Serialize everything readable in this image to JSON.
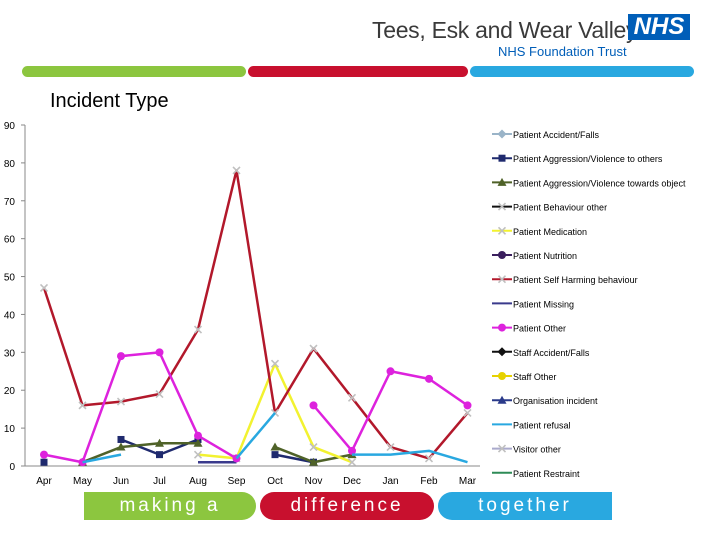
{
  "header": {
    "org_name": "Tees, Esk and Wear Valleys",
    "nhs_badge": "NHS",
    "trust_name": "NHS Foundation Trust"
  },
  "footer": {
    "left": "making a",
    "middle": "difference",
    "right": "together"
  },
  "colors": {
    "green": "#8cc63f",
    "red": "#c8102e",
    "blue": "#29a8e0",
    "nhs_blue": "#005eb8"
  },
  "chart_data": {
    "type": "line",
    "title": "Incident Type",
    "categories": [
      "Apr",
      "May",
      "Jun",
      "Jul",
      "Aug",
      "Sep",
      "Oct",
      "Nov",
      "Dec",
      "Jan",
      "Feb",
      "Mar"
    ],
    "ylim": [
      0,
      90
    ],
    "yticks": [
      0,
      10,
      20,
      30,
      40,
      50,
      60,
      70,
      80,
      90
    ],
    "grid": false,
    "legend_position": "right",
    "series": [
      {
        "name": "Patient Accident/Falls",
        "color": "#9ab4c8",
        "marker": "diamond",
        "values": [
          null,
          null,
          null,
          null,
          null,
          null,
          null,
          null,
          null,
          null,
          null,
          null
        ]
      },
      {
        "name": "Patient Aggression/Violence to others",
        "color": "#1f2a6e",
        "marker": "square",
        "values": [
          1,
          null,
          7,
          3,
          7,
          null,
          3,
          1,
          null,
          null,
          null,
          null
        ]
      },
      {
        "name": "Patient Aggression/Violence towards object",
        "color": "#4f6228",
        "marker": "triangle",
        "values": [
          null,
          1,
          5,
          6,
          6,
          null,
          5,
          1,
          3,
          null,
          null,
          null
        ]
      },
      {
        "name": "Patient Behaviour other",
        "color": "#111111",
        "marker": "x",
        "values": [
          null,
          null,
          null,
          null,
          null,
          null,
          null,
          null,
          null,
          null,
          null,
          null
        ]
      },
      {
        "name": "Patient Medication",
        "color": "#f2f230",
        "marker": "x",
        "values": [
          null,
          null,
          null,
          null,
          3,
          2,
          27,
          5,
          1,
          null,
          null,
          null
        ]
      },
      {
        "name": "Patient Nutrition",
        "color": "#3b1f5e",
        "marker": "circle",
        "values": [
          null,
          null,
          null,
          null,
          null,
          null,
          null,
          null,
          null,
          null,
          null,
          null
        ]
      },
      {
        "name": "Patient Self Harming behaviour",
        "color": "#b2182b",
        "marker": "x",
        "values": [
          47,
          16,
          17,
          19,
          36,
          78,
          14,
          31,
          18,
          5,
          2,
          14
        ]
      },
      {
        "name": "Patient Missing",
        "color": "#3a3a8c",
        "marker": "none",
        "values": [
          null,
          null,
          null,
          null,
          1,
          1,
          null,
          null,
          null,
          null,
          null,
          null
        ]
      },
      {
        "name": "Patient Other",
        "color": "#dd22dd",
        "marker": "circle",
        "values": [
          3,
          1,
          29,
          30,
          8,
          2,
          null,
          16,
          4,
          25,
          23,
          16
        ]
      },
      {
        "name": "Staff Accident/Falls",
        "color": "#111111",
        "marker": "diamond",
        "values": [
          null,
          null,
          null,
          null,
          null,
          null,
          null,
          null,
          null,
          null,
          null,
          null
        ]
      },
      {
        "name": "Staff Other",
        "color": "#e6d200",
        "marker": "circle",
        "values": [
          null,
          null,
          null,
          null,
          null,
          null,
          null,
          null,
          null,
          null,
          null,
          null
        ]
      },
      {
        "name": "Organisation incident",
        "color": "#2a3a8a",
        "marker": "triangle",
        "values": [
          null,
          null,
          null,
          null,
          null,
          null,
          null,
          null,
          null,
          null,
          null,
          null
        ]
      },
      {
        "name": "Patient refusal",
        "color": "#29a8e0",
        "marker": "none",
        "values": [
          null,
          1,
          3,
          null,
          null,
          2,
          14,
          null,
          3,
          3,
          4,
          1
        ]
      },
      {
        "name": "Visitor other",
        "color": "#aaaacc",
        "marker": "x",
        "values": [
          null,
          null,
          null,
          null,
          null,
          null,
          null,
          null,
          null,
          null,
          null,
          null
        ]
      },
      {
        "name": "Patient Restraint",
        "color": "#2e8b57",
        "marker": "none",
        "values": [
          null,
          null,
          null,
          null,
          null,
          null,
          null,
          null,
          null,
          null,
          null,
          null
        ]
      }
    ]
  }
}
